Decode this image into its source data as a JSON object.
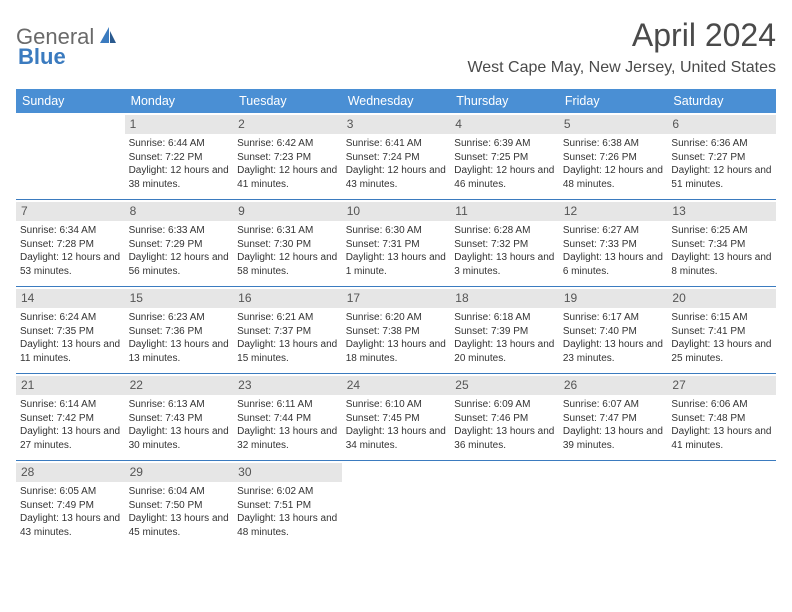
{
  "logo": {
    "text1": "General",
    "text2": "Blue"
  },
  "title": "April 2024",
  "subtitle": "West Cape May, New Jersey, United States",
  "colors": {
    "header_bg": "#4a8fd4",
    "accent": "#3b7bbf",
    "daynum_bg": "#e6e6e6",
    "text": "#333333",
    "title_text": "#4a4a4a",
    "logo_gray": "#6a6a6a"
  },
  "day_headers": [
    "Sunday",
    "Monday",
    "Tuesday",
    "Wednesday",
    "Thursday",
    "Friday",
    "Saturday"
  ],
  "weeks": [
    [
      {
        "empty": true
      },
      {
        "day": "1",
        "sunrise": "6:44 AM",
        "sunset": "7:22 PM",
        "daylight": "12 hours and 38 minutes."
      },
      {
        "day": "2",
        "sunrise": "6:42 AM",
        "sunset": "7:23 PM",
        "daylight": "12 hours and 41 minutes."
      },
      {
        "day": "3",
        "sunrise": "6:41 AM",
        "sunset": "7:24 PM",
        "daylight": "12 hours and 43 minutes."
      },
      {
        "day": "4",
        "sunrise": "6:39 AM",
        "sunset": "7:25 PM",
        "daylight": "12 hours and 46 minutes."
      },
      {
        "day": "5",
        "sunrise": "6:38 AM",
        "sunset": "7:26 PM",
        "daylight": "12 hours and 48 minutes."
      },
      {
        "day": "6",
        "sunrise": "6:36 AM",
        "sunset": "7:27 PM",
        "daylight": "12 hours and 51 minutes."
      }
    ],
    [
      {
        "day": "7",
        "sunrise": "6:34 AM",
        "sunset": "7:28 PM",
        "daylight": "12 hours and 53 minutes."
      },
      {
        "day": "8",
        "sunrise": "6:33 AM",
        "sunset": "7:29 PM",
        "daylight": "12 hours and 56 minutes."
      },
      {
        "day": "9",
        "sunrise": "6:31 AM",
        "sunset": "7:30 PM",
        "daylight": "12 hours and 58 minutes."
      },
      {
        "day": "10",
        "sunrise": "6:30 AM",
        "sunset": "7:31 PM",
        "daylight": "13 hours and 1 minute."
      },
      {
        "day": "11",
        "sunrise": "6:28 AM",
        "sunset": "7:32 PM",
        "daylight": "13 hours and 3 minutes."
      },
      {
        "day": "12",
        "sunrise": "6:27 AM",
        "sunset": "7:33 PM",
        "daylight": "13 hours and 6 minutes."
      },
      {
        "day": "13",
        "sunrise": "6:25 AM",
        "sunset": "7:34 PM",
        "daylight": "13 hours and 8 minutes."
      }
    ],
    [
      {
        "day": "14",
        "sunrise": "6:24 AM",
        "sunset": "7:35 PM",
        "daylight": "13 hours and 11 minutes."
      },
      {
        "day": "15",
        "sunrise": "6:23 AM",
        "sunset": "7:36 PM",
        "daylight": "13 hours and 13 minutes."
      },
      {
        "day": "16",
        "sunrise": "6:21 AM",
        "sunset": "7:37 PM",
        "daylight": "13 hours and 15 minutes."
      },
      {
        "day": "17",
        "sunrise": "6:20 AM",
        "sunset": "7:38 PM",
        "daylight": "13 hours and 18 minutes."
      },
      {
        "day": "18",
        "sunrise": "6:18 AM",
        "sunset": "7:39 PM",
        "daylight": "13 hours and 20 minutes."
      },
      {
        "day": "19",
        "sunrise": "6:17 AM",
        "sunset": "7:40 PM",
        "daylight": "13 hours and 23 minutes."
      },
      {
        "day": "20",
        "sunrise": "6:15 AM",
        "sunset": "7:41 PM",
        "daylight": "13 hours and 25 minutes."
      }
    ],
    [
      {
        "day": "21",
        "sunrise": "6:14 AM",
        "sunset": "7:42 PM",
        "daylight": "13 hours and 27 minutes."
      },
      {
        "day": "22",
        "sunrise": "6:13 AM",
        "sunset": "7:43 PM",
        "daylight": "13 hours and 30 minutes."
      },
      {
        "day": "23",
        "sunrise": "6:11 AM",
        "sunset": "7:44 PM",
        "daylight": "13 hours and 32 minutes."
      },
      {
        "day": "24",
        "sunrise": "6:10 AM",
        "sunset": "7:45 PM",
        "daylight": "13 hours and 34 minutes."
      },
      {
        "day": "25",
        "sunrise": "6:09 AM",
        "sunset": "7:46 PM",
        "daylight": "13 hours and 36 minutes."
      },
      {
        "day": "26",
        "sunrise": "6:07 AM",
        "sunset": "7:47 PM",
        "daylight": "13 hours and 39 minutes."
      },
      {
        "day": "27",
        "sunrise": "6:06 AM",
        "sunset": "7:48 PM",
        "daylight": "13 hours and 41 minutes."
      }
    ],
    [
      {
        "day": "28",
        "sunrise": "6:05 AM",
        "sunset": "7:49 PM",
        "daylight": "13 hours and 43 minutes."
      },
      {
        "day": "29",
        "sunrise": "6:04 AM",
        "sunset": "7:50 PM",
        "daylight": "13 hours and 45 minutes."
      },
      {
        "day": "30",
        "sunrise": "6:02 AM",
        "sunset": "7:51 PM",
        "daylight": "13 hours and 48 minutes."
      },
      {
        "empty": true
      },
      {
        "empty": true
      },
      {
        "empty": true
      },
      {
        "empty": true
      }
    ]
  ],
  "labels": {
    "sunrise": "Sunrise: ",
    "sunset": "Sunset: ",
    "daylight": "Daylight: "
  }
}
